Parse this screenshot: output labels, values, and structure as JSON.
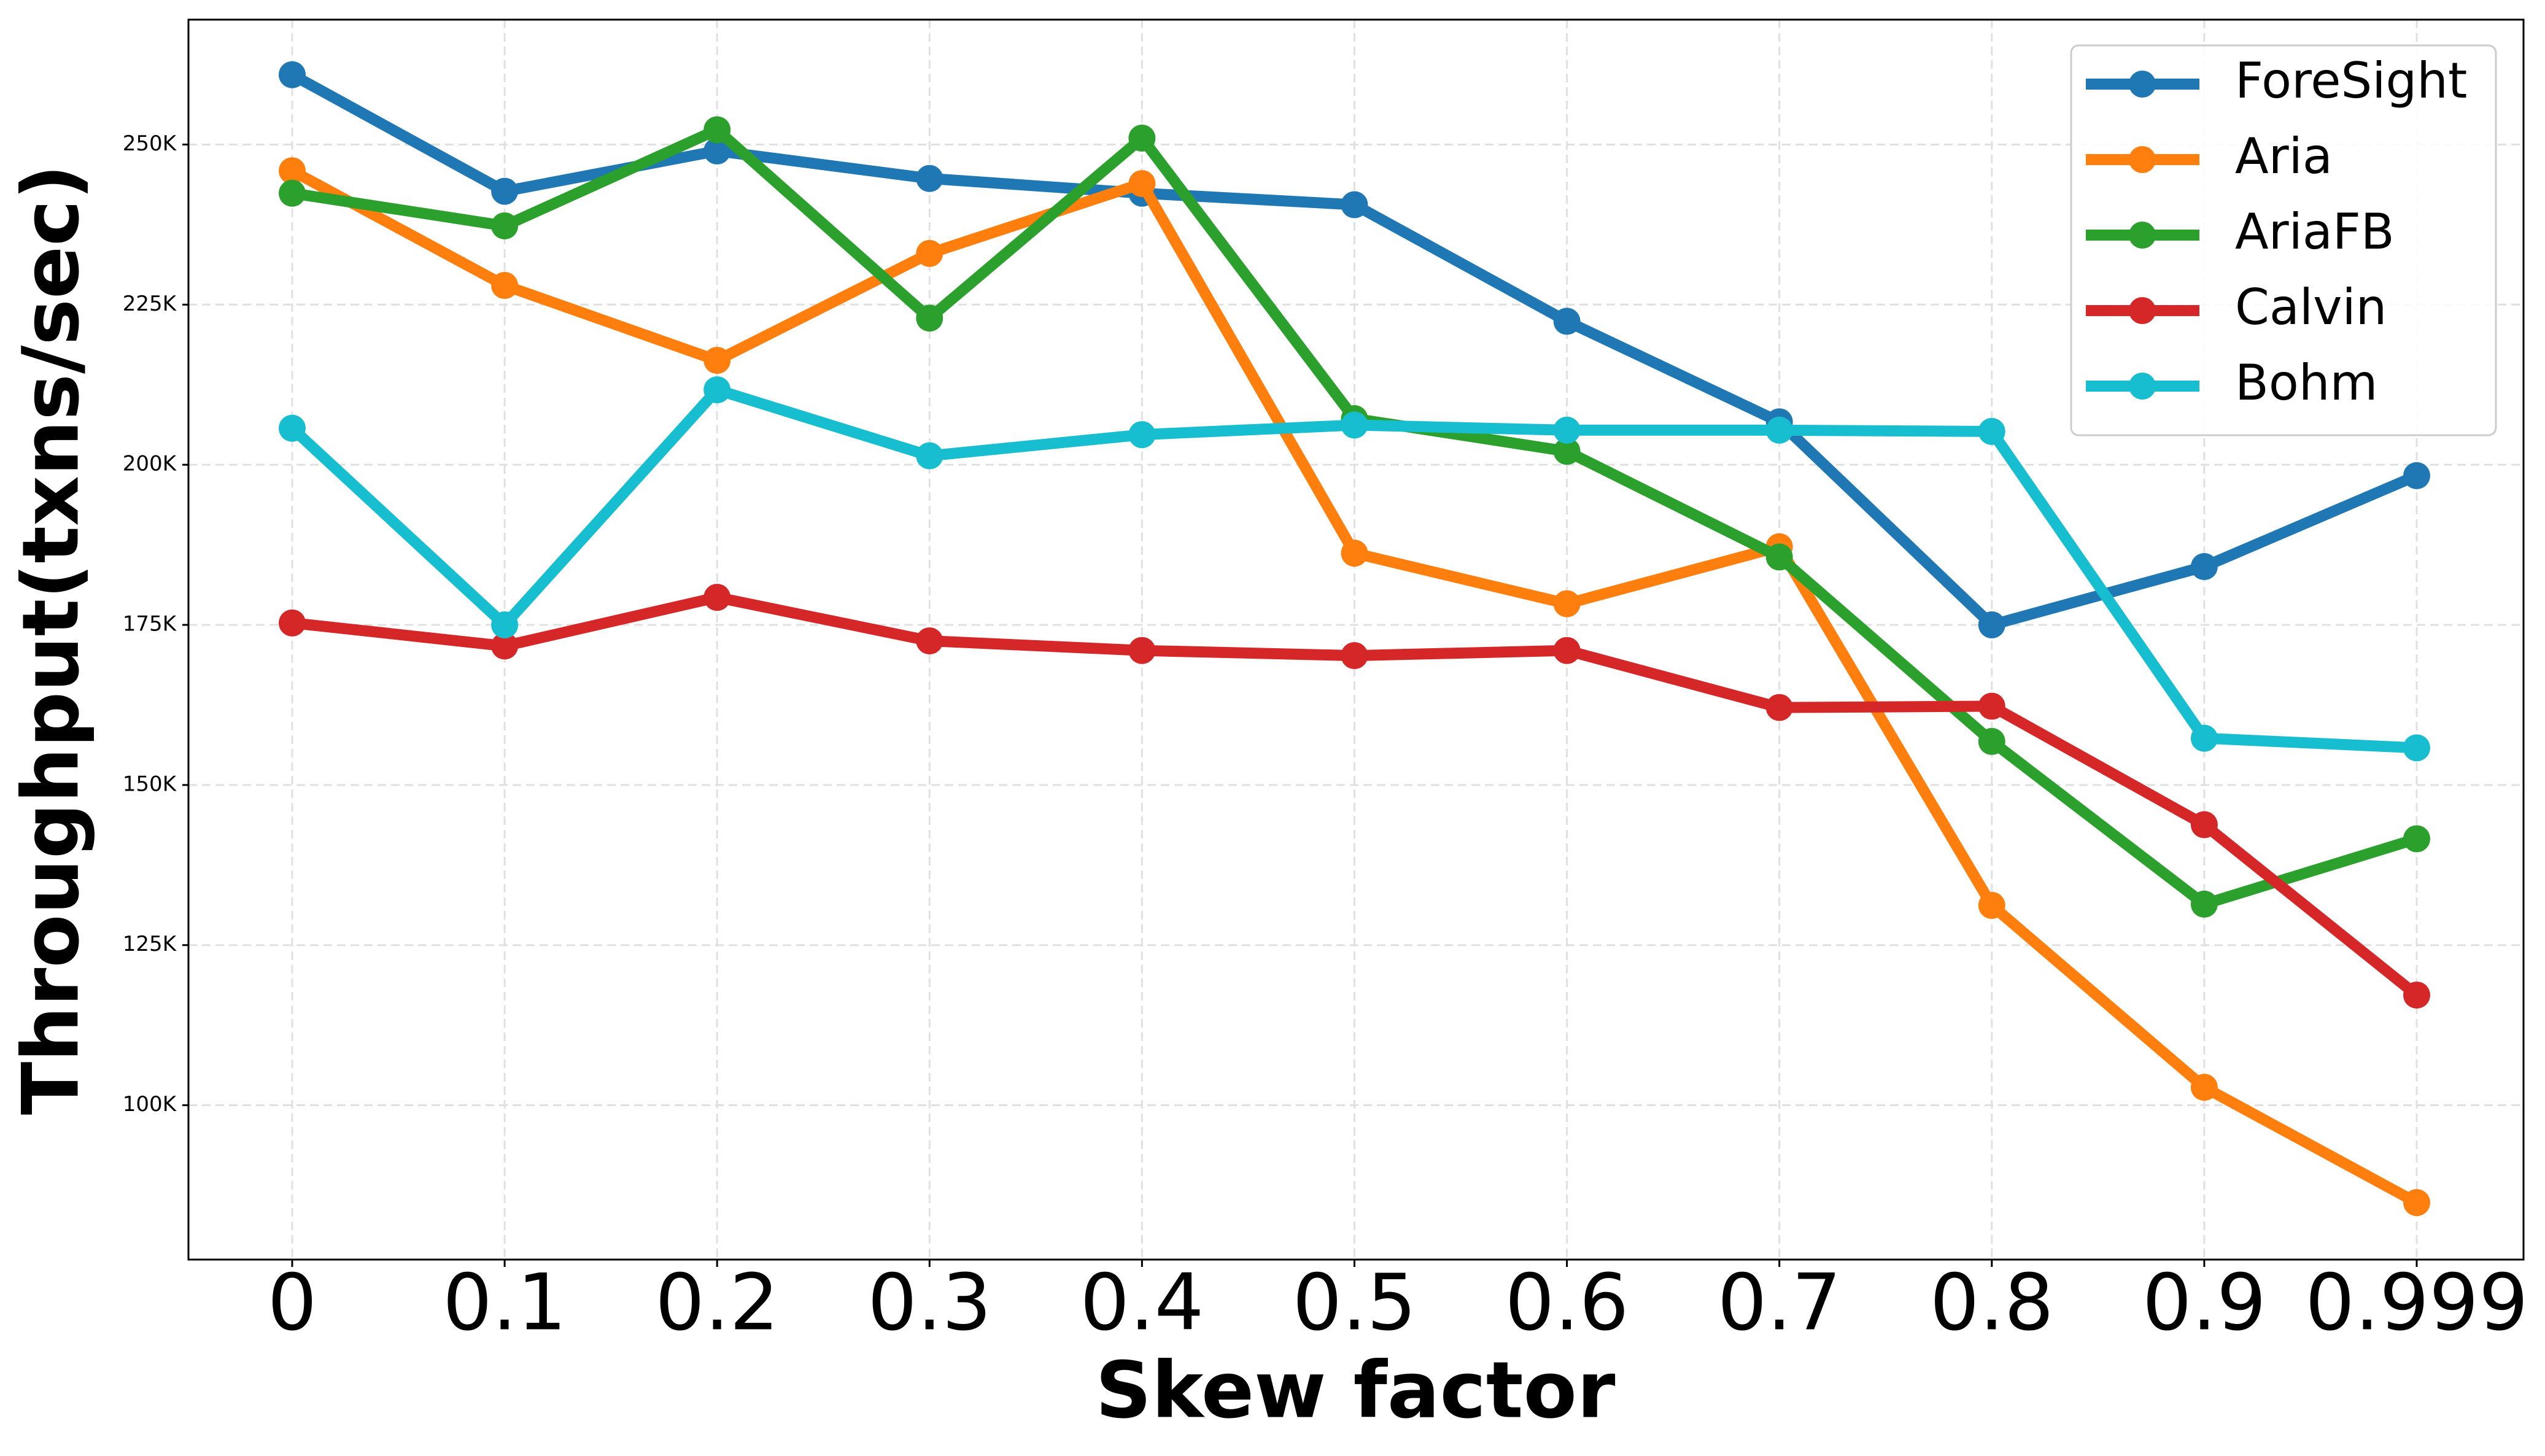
{
  "chart_data": {
    "type": "line",
    "xlabel": "Skew factor",
    "ylabel": "Throughput(txns/sec)",
    "categories": [
      "0",
      "0.1",
      "0.2",
      "0.3",
      "0.4",
      "0.5",
      "0.6",
      "0.7",
      "0.8",
      "0.9",
      "0.999"
    ],
    "series": [
      {
        "name": "ForeSight",
        "color": "#1f77b4",
        "values": [
          260900,
          242700,
          249000,
          244700,
          242400,
          240600,
          222400,
          206700,
          175000,
          184100,
          198300
        ]
      },
      {
        "name": "Aria",
        "color": "#ff7f0e",
        "values": [
          245900,
          228000,
          216300,
          233000,
          243900,
          186200,
          178300,
          187200,
          131200,
          102800,
          84800
        ]
      },
      {
        "name": "AriaFB",
        "color": "#2ca02c",
        "values": [
          242400,
          237300,
          252300,
          222900,
          251000,
          207200,
          202100,
          185600,
          156800,
          131400,
          141600
        ]
      },
      {
        "name": "Calvin",
        "color": "#d62728",
        "values": [
          175300,
          171700,
          179300,
          172500,
          171000,
          170200,
          171000,
          162100,
          162300,
          143800,
          117200
        ]
      },
      {
        "name": "Bohm",
        "color": "#17becf",
        "values": [
          205700,
          175000,
          211700,
          201400,
          204700,
          206200,
          205400,
          205400,
          205200,
          157300,
          155800
        ]
      }
    ],
    "ylim": [
      75900,
      269500
    ],
    "yticks": [
      {
        "value": 100000,
        "label": "100K"
      },
      {
        "value": 125000,
        "label": "125K"
      },
      {
        "value": 150000,
        "label": "150K"
      },
      {
        "value": 175000,
        "label": "175K"
      },
      {
        "value": 200000,
        "label": "200K"
      },
      {
        "value": 225000,
        "label": "225K"
      },
      {
        "value": 250000,
        "label": "250K"
      }
    ],
    "grid": true,
    "legend": "upper right"
  }
}
